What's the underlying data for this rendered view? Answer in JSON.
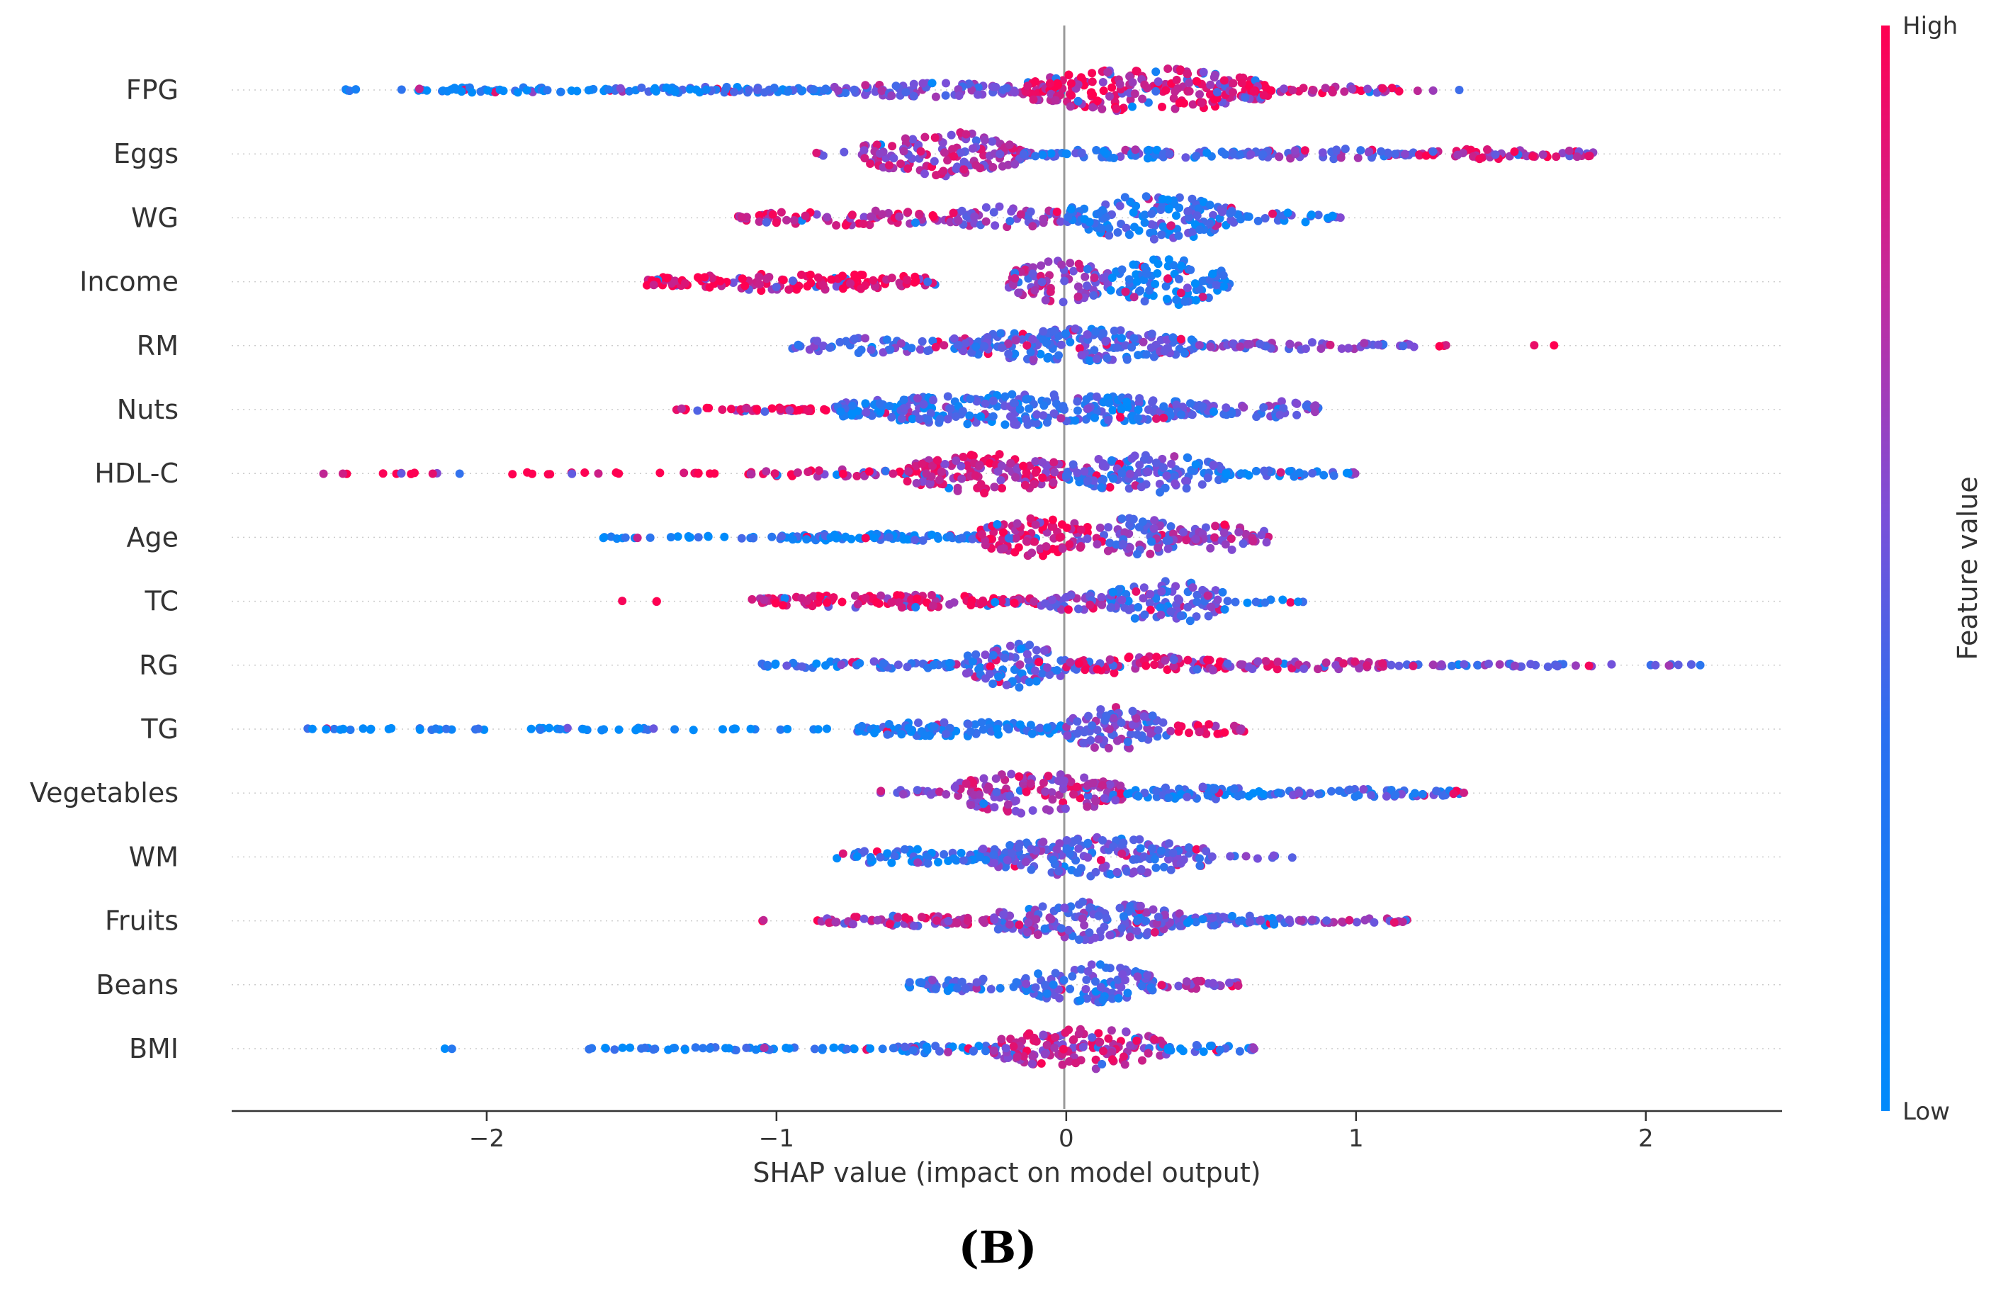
{
  "chart_data": {
    "type": "scatter",
    "subtype": "shap-beeswarm",
    "xlabel": "SHAP value (impact on model output)",
    "xlim": [
      -2.88,
      2.47
    ],
    "xticks": [
      -2,
      -1,
      0,
      1,
      2
    ],
    "xtick_labels": [
      "−2",
      "−1",
      "0",
      "1",
      "2"
    ],
    "colorbar": {
      "label": "Feature value",
      "high_label": "High",
      "low_label": "Low",
      "high_color": "#ff0051",
      "low_color": "#008bfb"
    },
    "panel_label": "(B)",
    "features": [
      {
        "name": "FPG",
        "segments": [
          {
            "from": -2.65,
            "to": -2.4,
            "density": 0.06,
            "spread": 0.05,
            "hue": 0.05
          },
          {
            "from": -2.3,
            "to": -1.6,
            "density": 0.25,
            "spread": 0.1,
            "hue": 0.08
          },
          {
            "from": -1.6,
            "to": -0.8,
            "density": 0.35,
            "spread": 0.12,
            "hue": 0.15
          },
          {
            "from": -0.8,
            "to": -0.15,
            "density": 0.45,
            "spread": 0.28,
            "hue": 0.45
          },
          {
            "from": -0.15,
            "to": 0.7,
            "density": 1.0,
            "spread": 0.85,
            "hue": 0.85
          },
          {
            "from": 0.7,
            "to": 1.15,
            "density": 0.3,
            "spread": 0.15,
            "hue": 0.9
          },
          {
            "from": 1.15,
            "to": 1.4,
            "density": 0.05,
            "spread": 0.05,
            "hue": 0.95
          }
        ]
      },
      {
        "name": "Eggs",
        "segments": [
          {
            "from": -0.95,
            "to": -0.7,
            "density": 0.08,
            "spread": 0.1,
            "hue": 0.6
          },
          {
            "from": -0.7,
            "to": -0.15,
            "density": 0.9,
            "spread": 0.85,
            "hue": 0.65
          },
          {
            "from": -0.15,
            "to": 0.6,
            "density": 0.4,
            "spread": 0.18,
            "hue": 0.2
          },
          {
            "from": 0.6,
            "to": 1.2,
            "density": 0.35,
            "spread": 0.2,
            "hue": 0.45
          },
          {
            "from": 1.2,
            "to": 1.82,
            "density": 0.35,
            "spread": 0.2,
            "hue": 0.8
          }
        ]
      },
      {
        "name": "WG",
        "segments": [
          {
            "from": -1.15,
            "to": -0.4,
            "density": 0.35,
            "spread": 0.3,
            "hue": 0.8
          },
          {
            "from": -0.4,
            "to": 0.0,
            "density": 0.45,
            "spread": 0.45,
            "hue": 0.55
          },
          {
            "from": 0.0,
            "to": 0.6,
            "density": 0.9,
            "spread": 0.85,
            "hue": 0.2
          },
          {
            "from": 0.6,
            "to": 0.95,
            "density": 0.25,
            "spread": 0.2,
            "hue": 0.15
          }
        ]
      },
      {
        "name": "Income",
        "segments": [
          {
            "from": -1.45,
            "to": -0.45,
            "density": 0.5,
            "spread": 0.35,
            "hue": 1.0
          },
          {
            "from": -0.2,
            "to": 0.15,
            "density": 0.9,
            "spread": 0.8,
            "hue": 0.62
          },
          {
            "from": 0.15,
            "to": 0.57,
            "density": 0.9,
            "spread": 0.9,
            "hue": 0.05
          }
        ]
      },
      {
        "name": "RM",
        "segments": [
          {
            "from": -0.95,
            "to": -0.4,
            "density": 0.3,
            "spread": 0.3,
            "hue": 0.35
          },
          {
            "from": -0.4,
            "to": 0.45,
            "density": 0.85,
            "spread": 0.65,
            "hue": 0.3
          },
          {
            "from": 0.45,
            "to": 1.2,
            "density": 0.3,
            "spread": 0.15,
            "hue": 0.45
          },
          {
            "from": 1.2,
            "to": 1.7,
            "density": 0.04,
            "spread": 0.04,
            "hue": 0.95
          }
        ]
      },
      {
        "name": "Nuts",
        "segments": [
          {
            "from": -1.35,
            "to": -0.8,
            "density": 0.3,
            "spread": 0.08,
            "hue": 0.95
          },
          {
            "from": -0.8,
            "to": 0.5,
            "density": 0.85,
            "spread": 0.6,
            "hue": 0.22
          },
          {
            "from": 0.5,
            "to": 0.87,
            "density": 0.4,
            "spread": 0.35,
            "hue": 0.4
          }
        ]
      },
      {
        "name": "HDL-C",
        "segments": [
          {
            "from": -2.6,
            "to": -1.2,
            "density": 0.08,
            "spread": 0.04,
            "hue": 1.0
          },
          {
            "from": -1.1,
            "to": -0.55,
            "density": 0.25,
            "spread": 0.15,
            "hue": 0.9
          },
          {
            "from": -0.55,
            "to": 0.0,
            "density": 0.9,
            "spread": 0.8,
            "hue": 0.75
          },
          {
            "from": 0.0,
            "to": 0.55,
            "density": 0.85,
            "spread": 0.75,
            "hue": 0.3
          },
          {
            "from": 0.55,
            "to": 1.0,
            "density": 0.3,
            "spread": 0.12,
            "hue": 0.15
          }
        ]
      },
      {
        "name": "Age",
        "segments": [
          {
            "from": -1.7,
            "to": -1.0,
            "density": 0.12,
            "spread": 0.06,
            "hue": 0.05
          },
          {
            "from": -1.0,
            "to": -0.3,
            "density": 0.45,
            "spread": 0.15,
            "hue": 0.1
          },
          {
            "from": -0.3,
            "to": 0.1,
            "density": 0.9,
            "spread": 0.75,
            "hue": 0.9
          },
          {
            "from": 0.1,
            "to": 0.4,
            "density": 0.9,
            "spread": 0.8,
            "hue": 0.45
          },
          {
            "from": 0.4,
            "to": 0.7,
            "density": 0.6,
            "spread": 0.5,
            "hue": 0.6
          }
        ]
      },
      {
        "name": "TC",
        "segments": [
          {
            "from": -1.6,
            "to": -1.4,
            "density": 0.05,
            "spread": 0.04,
            "hue": 1.0
          },
          {
            "from": -1.1,
            "to": -0.1,
            "density": 0.5,
            "spread": 0.25,
            "hue": 0.9
          },
          {
            "from": -0.1,
            "to": 0.15,
            "density": 0.55,
            "spread": 0.35,
            "hue": 0.55
          },
          {
            "from": 0.15,
            "to": 0.55,
            "density": 0.9,
            "spread": 0.85,
            "hue": 0.3
          },
          {
            "from": 0.55,
            "to": 0.82,
            "density": 0.15,
            "spread": 0.08,
            "hue": 0.05
          }
        ]
      },
      {
        "name": "RG",
        "segments": [
          {
            "from": -1.05,
            "to": -0.35,
            "density": 0.3,
            "spread": 0.15,
            "hue": 0.2
          },
          {
            "from": -0.35,
            "to": 0.0,
            "density": 0.9,
            "spread": 0.85,
            "hue": 0.3
          },
          {
            "from": 0.0,
            "to": 0.55,
            "density": 0.5,
            "spread": 0.35,
            "hue": 0.8
          },
          {
            "from": 0.55,
            "to": 1.1,
            "density": 0.35,
            "spread": 0.2,
            "hue": 0.7
          },
          {
            "from": 1.1,
            "to": 2.25,
            "density": 0.15,
            "spread": 0.06,
            "hue": 0.4
          }
        ]
      },
      {
        "name": "TG",
        "segments": [
          {
            "from": -2.65,
            "to": -0.8,
            "density": 0.12,
            "spread": 0.05,
            "hue": 0.0
          },
          {
            "from": -0.75,
            "to": 0.0,
            "density": 0.5,
            "spread": 0.3,
            "hue": 0.15
          },
          {
            "from": 0.0,
            "to": 0.35,
            "density": 0.9,
            "spread": 0.85,
            "hue": 0.45
          },
          {
            "from": 0.35,
            "to": 0.62,
            "density": 0.35,
            "spread": 0.2,
            "hue": 0.85
          }
        ]
      },
      {
        "name": "Vegetables",
        "segments": [
          {
            "from": -0.68,
            "to": -0.4,
            "density": 0.2,
            "spread": 0.12,
            "hue": 0.6
          },
          {
            "from": -0.4,
            "to": 0.2,
            "density": 0.9,
            "spread": 0.8,
            "hue": 0.72
          },
          {
            "from": 0.2,
            "to": 0.7,
            "density": 0.45,
            "spread": 0.25,
            "hue": 0.2
          },
          {
            "from": 0.7,
            "to": 1.4,
            "density": 0.3,
            "spread": 0.15,
            "hue": 0.3
          }
        ]
      },
      {
        "name": "WM",
        "segments": [
          {
            "from": -0.8,
            "to": -0.3,
            "density": 0.4,
            "spread": 0.3,
            "hue": 0.15
          },
          {
            "from": -0.3,
            "to": 0.5,
            "density": 0.9,
            "spread": 0.75,
            "hue": 0.35
          },
          {
            "from": 0.5,
            "to": 0.78,
            "density": 0.12,
            "spread": 0.08,
            "hue": 0.3
          }
        ]
      },
      {
        "name": "Fruits",
        "segments": [
          {
            "from": -1.1,
            "to": -0.85,
            "density": 0.05,
            "spread": 0.05,
            "hue": 0.9
          },
          {
            "from": -0.85,
            "to": -0.25,
            "density": 0.45,
            "spread": 0.2,
            "hue": 0.7
          },
          {
            "from": -0.25,
            "to": 0.4,
            "density": 0.9,
            "spread": 0.75,
            "hue": 0.4
          },
          {
            "from": 0.4,
            "to": 0.8,
            "density": 0.45,
            "spread": 0.2,
            "hue": 0.25
          },
          {
            "from": 0.8,
            "to": 1.18,
            "density": 0.25,
            "spread": 0.12,
            "hue": 0.6
          }
        ]
      },
      {
        "name": "Beans",
        "segments": [
          {
            "from": -0.55,
            "to": -0.15,
            "density": 0.4,
            "spread": 0.25,
            "hue": 0.2
          },
          {
            "from": -0.15,
            "to": 0.3,
            "density": 0.9,
            "spread": 0.8,
            "hue": 0.3
          },
          {
            "from": 0.3,
            "to": 0.6,
            "density": 0.3,
            "spread": 0.2,
            "hue": 0.6
          }
        ]
      },
      {
        "name": "BMI",
        "segments": [
          {
            "from": -2.15,
            "to": -2.1,
            "density": 0.02,
            "spread": 0.02,
            "hue": 0.0
          },
          {
            "from": -1.65,
            "to": -0.6,
            "density": 0.18,
            "spread": 0.06,
            "hue": 0.03
          },
          {
            "from": -0.6,
            "to": -0.25,
            "density": 0.35,
            "spread": 0.2,
            "hue": 0.2
          },
          {
            "from": -0.25,
            "to": 0.35,
            "density": 0.9,
            "spread": 0.8,
            "hue": 0.72
          },
          {
            "from": 0.35,
            "to": 0.65,
            "density": 0.3,
            "spread": 0.15,
            "hue": 0.15
          }
        ]
      }
    ]
  }
}
